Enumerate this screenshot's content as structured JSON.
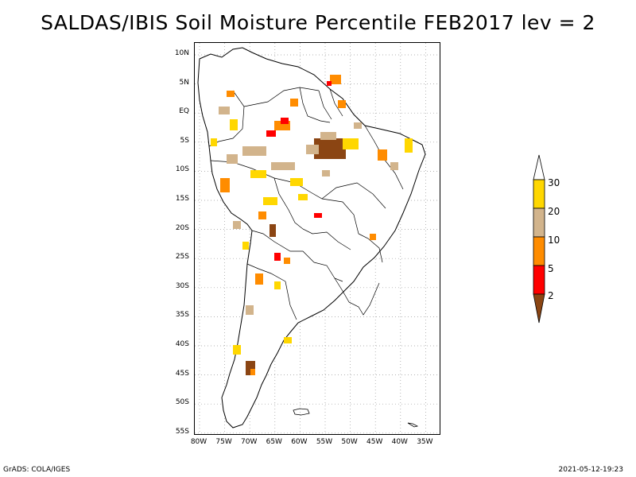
{
  "title": "SALDAS/IBIS Soil Moisture Percentile FEB2017 lev = 2",
  "lat_labels": [
    "10N",
    "5N",
    "EQ",
    "5S",
    "10S",
    "15S",
    "20S",
    "25S",
    "30S",
    "35S",
    "40S",
    "45S",
    "50S",
    "55S"
  ],
  "lon_labels": [
    "80W",
    "75W",
    "70W",
    "65W",
    "60W",
    "55W",
    "50W",
    "45W",
    "40W",
    "35W"
  ],
  "legend": {
    "labels": [
      "30",
      "20",
      "10",
      "5",
      "2"
    ],
    "colors": {
      "above30": "#ffffff",
      "p20_30": "#ffd700",
      "p10_20": "#d2b48c",
      "p5_10": "#ff8c00",
      "p2_5": "#ff0000",
      "below2": "#8b4513"
    }
  },
  "footer": {
    "left": "GrADS: COLA/IGES",
    "right": "2021-05-12-19:23"
  }
}
